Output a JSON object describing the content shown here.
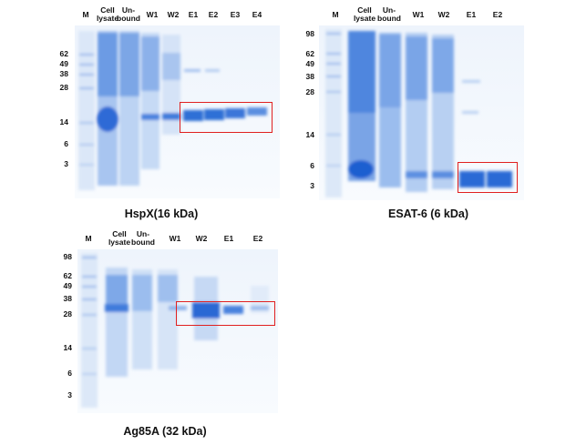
{
  "panels": [
    {
      "caption": "HspX(16 kDa)",
      "lanes": [
        "M",
        "Cell\nlysate",
        "Un-\nbound",
        "W1",
        "W2",
        "E1",
        "E2",
        "E3",
        "E4"
      ],
      "markers": [
        "62",
        "49",
        "38",
        "28",
        "14",
        "6",
        "3"
      ]
    },
    {
      "caption": "ESAT-6 (6 kDa)",
      "lanes": [
        "M",
        "Cell\nlysate",
        "Un-\nbound",
        "W1",
        "W2",
        "E1",
        "E2"
      ],
      "markers": [
        "98",
        "62",
        "49",
        "38",
        "28",
        "14",
        "6",
        "3"
      ]
    },
    {
      "caption": "Ag85A (32 kDa)",
      "lanes": [
        "M",
        "Cell\nlysate",
        "Un-\nbound",
        "W1",
        "W2",
        "E1",
        "E2"
      ],
      "markers": [
        "98",
        "62",
        "49",
        "38",
        "28",
        "14",
        "6",
        "3"
      ]
    }
  ],
  "colors": {
    "gel_background": "#f4f8fd",
    "protein_band": "#2f6fd6",
    "highlight_box": "#e02020"
  }
}
